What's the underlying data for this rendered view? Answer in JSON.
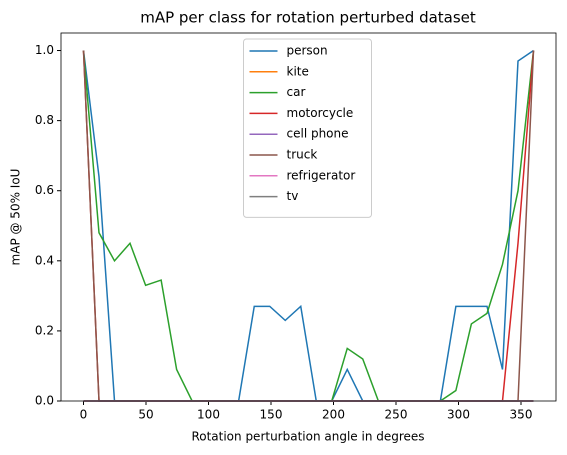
{
  "chart_data": {
    "type": "line",
    "title": "mAP per class for rotation perturbed dataset",
    "x_label": "Rotation perturbation angle in degrees",
    "y_label": "mAP @ 50% IoU",
    "x": [
      0,
      12.4,
      24.8,
      37.2,
      49.7,
      62.1,
      74.5,
      86.9,
      99.3,
      111.7,
      124.1,
      136.6,
      149.0,
      161.4,
      173.8,
      186.2,
      198.6,
      211.0,
      223.4,
      235.9,
      248.3,
      260.7,
      273.1,
      285.5,
      297.9,
      310.3,
      322.8,
      335.2,
      347.6,
      360
    ],
    "series": [
      {
        "name": "person",
        "color": "#1f77b4",
        "values": [
          1.0,
          0.64,
          0,
          0,
          0,
          0,
          0,
          0,
          0,
          0,
          0,
          0.27,
          0.27,
          0.23,
          0.27,
          0,
          0,
          0.09,
          0,
          0,
          0,
          0,
          0,
          0,
          0.27,
          0.27,
          0.27,
          0.09,
          0.97,
          1.0
        ]
      },
      {
        "name": "kite",
        "color": "#ff7f0e",
        "values": [
          0,
          0,
          0,
          0,
          0,
          0,
          0,
          0,
          0,
          0,
          0,
          0,
          0,
          0,
          0,
          0,
          0,
          0,
          0,
          0,
          0,
          0,
          0,
          0,
          0,
          0,
          0,
          0,
          0,
          0
        ]
      },
      {
        "name": "car",
        "color": "#2ca02c",
        "values": [
          1.0,
          0.48,
          0.4,
          0.45,
          0.33,
          0.345,
          0.09,
          0,
          0,
          0,
          0,
          0,
          0,
          0,
          0,
          0,
          0,
          0.15,
          0.12,
          0,
          0,
          0,
          0,
          0,
          0.03,
          0.22,
          0.25,
          0.39,
          0.6,
          1.0
        ]
      },
      {
        "name": "motorcycle",
        "color": "#d62728",
        "values": [
          1.0,
          0,
          0,
          0,
          0,
          0,
          0,
          0,
          0,
          0,
          0,
          0,
          0,
          0,
          0,
          0,
          0,
          0,
          0,
          0,
          0,
          0,
          0,
          0,
          0,
          0,
          0,
          0,
          0.45,
          1.0
        ]
      },
      {
        "name": "cell phone",
        "color": "#9467bd",
        "values": [
          0,
          0,
          0,
          0,
          0,
          0,
          0,
          0,
          0,
          0,
          0,
          0,
          0,
          0,
          0,
          0,
          0,
          0,
          0,
          0,
          0,
          0,
          0,
          0,
          0,
          0,
          0,
          0,
          0,
          0
        ]
      },
      {
        "name": "truck",
        "color": "#8c564b",
        "values": [
          1.0,
          0,
          0,
          0,
          0,
          0,
          0,
          0,
          0,
          0,
          0,
          0,
          0,
          0,
          0,
          0,
          0,
          0,
          0,
          0,
          0,
          0,
          0,
          0,
          0,
          0,
          0,
          0,
          0,
          1.0
        ]
      },
      {
        "name": "refrigerator",
        "color": "#e377c2",
        "values": [
          0,
          0,
          0,
          0,
          0,
          0,
          0,
          0,
          0,
          0,
          0,
          0,
          0,
          0,
          0,
          0,
          0,
          0,
          0,
          0,
          0,
          0,
          0,
          0,
          0,
          0,
          0,
          0,
          0,
          0
        ]
      },
      {
        "name": "tv",
        "color": "#7f7f7f",
        "values": [
          0,
          0,
          0,
          0,
          0,
          0,
          0,
          0,
          0,
          0,
          0,
          0,
          0,
          0,
          0,
          0,
          0,
          0,
          0,
          0,
          0,
          0,
          0,
          0,
          0,
          0,
          0,
          0,
          0,
          0
        ]
      }
    ],
    "xlim": [
      -18,
      378
    ],
    "xticks": [
      0,
      50,
      100,
      150,
      200,
      250,
      300,
      350
    ],
    "ylim": [
      0,
      1.05
    ],
    "yticks": [
      {
        "value": 0,
        "label": "0.0"
      },
      0.2,
      0.4,
      0.6,
      0.8,
      {
        "value": 1,
        "label": "1.0"
      }
    ],
    "legend": "upper center"
  }
}
